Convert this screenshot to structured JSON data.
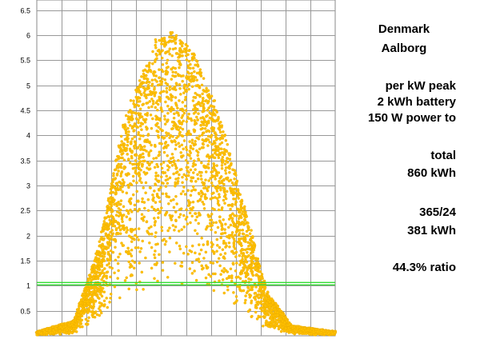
{
  "info": {
    "country": "Denmark",
    "city": "Aalborg",
    "line1": "per kW peak",
    "line2": "2 kWh battery",
    "line3": "150 W power to",
    "total_label": "total",
    "total_value": "860 kWh",
    "ratio_label": "365/24",
    "ratio_value": "381 kWh",
    "percent": "44.3% ratio"
  },
  "chart_data": {
    "type": "scatter",
    "title": "",
    "xlabel": "",
    "ylabel": "",
    "xlim": [
      0,
      24
    ],
    "ylim": [
      0,
      6.7
    ],
    "x_grid_count": 12,
    "y_ticks": [
      0.5,
      1,
      1.5,
      2,
      2.5,
      3,
      3.5,
      4,
      4.5,
      5,
      5.5,
      6,
      6.5
    ],
    "grid": true,
    "point_color": "#ffc000",
    "point_edge_color": "#e6a800",
    "reference_line": {
      "value": 1.04,
      "color": "#33dd33"
    },
    "profile_points": [
      [
        0,
        0.08
      ],
      [
        3,
        0.3
      ],
      [
        5,
        1.8
      ],
      [
        7,
        4.3
      ],
      [
        9.5,
        5.9
      ],
      [
        11,
        6.1
      ],
      [
        12.5,
        5.7
      ],
      [
        14.5,
        4.6
      ],
      [
        16.5,
        2.8
      ],
      [
        18.5,
        0.9
      ],
      [
        20.5,
        0.2
      ],
      [
        24,
        0.08
      ]
    ],
    "n_points": 4200
  }
}
